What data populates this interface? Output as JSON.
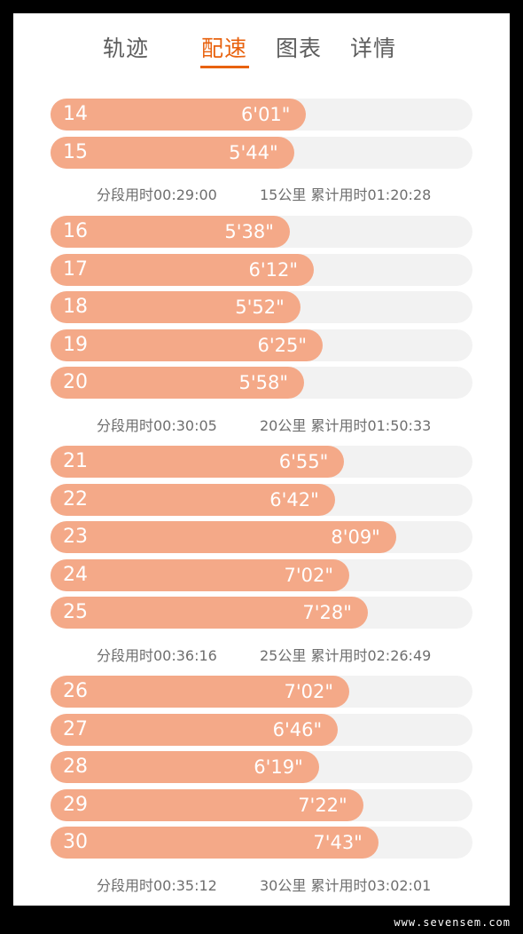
{
  "tabs": [
    {
      "label": "轨迹",
      "active": false
    },
    {
      "label": "配速",
      "active": true
    },
    {
      "label": "图表",
      "active": false
    },
    {
      "label": "详情",
      "active": false
    }
  ],
  "colors": {
    "accent": "#e8620e",
    "bar_fill": "#f4a988",
    "bar_track": "#f2f2f2"
  },
  "pace_max": "8'09\"",
  "partial_top_row": {
    "fraction": 0.57
  },
  "rows": [
    {
      "km": "14",
      "pace": "6'01\"",
      "fraction": 0.606
    },
    {
      "km": "15",
      "pace": "5'44\"",
      "fraction": 0.577
    },
    {
      "km": "16",
      "pace": "5'38\"",
      "fraction": 0.567
    },
    {
      "km": "17",
      "pace": "6'12\"",
      "fraction": 0.624
    },
    {
      "km": "18",
      "pace": "5'52\"",
      "fraction": 0.592
    },
    {
      "km": "19",
      "pace": "6'25\"",
      "fraction": 0.645
    },
    {
      "km": "20",
      "pace": "5'58\"",
      "fraction": 0.601
    },
    {
      "km": "21",
      "pace": "6'55\"",
      "fraction": 0.696
    },
    {
      "km": "22",
      "pace": "6'42\"",
      "fraction": 0.674
    },
    {
      "km": "23",
      "pace": "8'09\"",
      "fraction": 0.819
    },
    {
      "km": "24",
      "pace": "7'02\"",
      "fraction": 0.708
    },
    {
      "km": "25",
      "pace": "7'28\"",
      "fraction": 0.752
    },
    {
      "km": "26",
      "pace": "7'02\"",
      "fraction": 0.708
    },
    {
      "km": "27",
      "pace": "6'46\"",
      "fraction": 0.681
    },
    {
      "km": "28",
      "pace": "6'19\"",
      "fraction": 0.636
    },
    {
      "km": "29",
      "pace": "7'22\"",
      "fraction": 0.741
    },
    {
      "km": "30",
      "pace": "7'43\"",
      "fraction": 0.777
    }
  ],
  "summaries": [
    {
      "segment": "分段用时00:29:00",
      "cumulative": "15公里 累计用时01:20:28"
    },
    {
      "segment": "分段用时00:30:05",
      "cumulative": "20公里 累计用时01:50:33"
    },
    {
      "segment": "分段用时00:36:16",
      "cumulative": "25公里 累计用时02:26:49"
    },
    {
      "segment": "分段用时00:35:12",
      "cumulative": "30公里 累计用时03:02:01"
    }
  ],
  "watermark": "www.sevensem.com"
}
